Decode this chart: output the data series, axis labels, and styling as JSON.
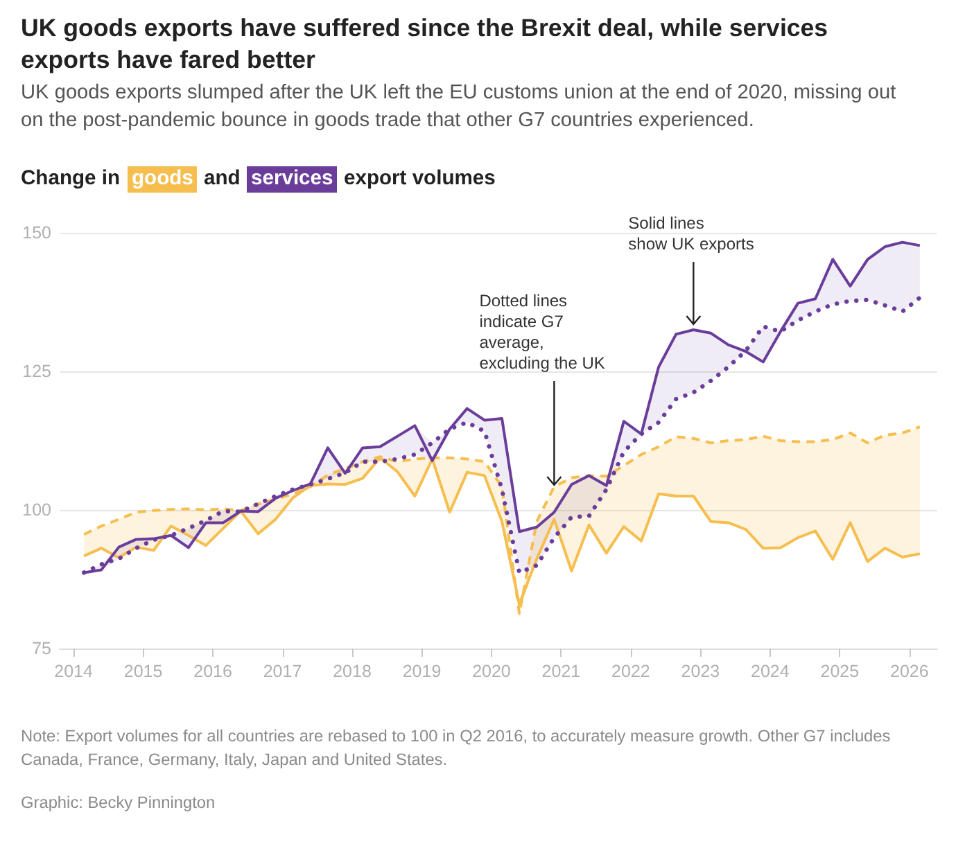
{
  "chart_data": {
    "type": "line",
    "title": "UK goods exports have suffered since the Brexit deal, while services exports have fared better",
    "subtitle": "UK goods exports slumped after the UK left the EU customs union at the end of 2020, missing out on the post-pandemic bounce in goods trade that other G7 countries experienced.",
    "x": [
      2014.15,
      2014.4,
      2014.65,
      2014.9,
      2015.15,
      2015.4,
      2015.65,
      2015.9,
      2016.15,
      2016.4,
      2016.65,
      2016.9,
      2017.15,
      2017.4,
      2017.65,
      2017.9,
      2018.15,
      2018.4,
      2018.65,
      2018.9,
      2019.15,
      2019.4,
      2019.65,
      2019.9,
      2020.15,
      2020.4,
      2020.65,
      2020.9,
      2021.15,
      2021.4,
      2021.65,
      2021.9,
      2022.15,
      2022.4,
      2022.65,
      2022.9,
      2023.15,
      2023.4,
      2023.65,
      2023.9,
      2024.15,
      2024.4,
      2024.65,
      2024.9,
      2025.15,
      2025.4,
      2025.65,
      2025.9,
      2026.15
    ],
    "series": [
      {
        "name": "goods",
        "color": "#f6be4f",
        "line_style": "solid",
        "values": [
          91.7,
          93.1,
          91.4,
          93.3,
          92.7,
          97.1,
          95.4,
          93.6,
          96.7,
          99.8,
          95.7,
          98.3,
          102.2,
          104.4,
          104.7,
          104.6,
          105.7,
          109.4,
          106.9,
          102.5,
          109.2,
          99.6,
          106.8,
          106.2,
          97.9,
          83.0,
          91.2,
          98.3,
          89.0,
          97.3,
          92.2,
          97.0,
          94.4,
          102.9,
          102.5,
          102.5,
          97.9,
          97.7,
          96.5,
          93.1,
          93.2,
          95.0,
          96.2,
          91.1,
          97.7,
          90.7,
          93.1,
          91.5,
          92.1
        ],
        "lower": [
          91.7,
          93.1,
          91.4,
          93.3,
          92.7,
          97.1,
          95.4,
          93.6,
          96.7,
          99.8,
          95.7,
          98.3,
          102.2,
          104.2,
          104.7,
          104.6,
          105.7,
          109.4,
          106.9,
          102.5,
          109.2,
          99.6,
          106.8,
          106.2,
          97.9,
          81.3,
          91.2,
          98.3,
          89.0,
          97.3,
          92.2,
          97.0,
          94.4,
          102.9,
          102.5,
          102.5,
          97.9,
          97.7,
          96.5,
          93.1,
          93.2,
          95.0,
          96.2,
          91.1,
          97.7,
          90.7,
          93.1,
          91.5,
          92.1
        ],
        "upper": [
          95.6,
          97.1,
          98.3,
          99.6,
          99.9,
          100.1,
          100.2,
          100.0,
          100.2,
          99.9,
          101.1,
          101.9,
          102.9,
          104.4,
          106.3,
          107.5,
          108.7,
          109.6,
          108.7,
          109.2,
          109.4,
          109.4,
          109.2,
          108.7,
          104.2,
          83.0,
          97.9,
          104.2,
          105.8,
          106.2,
          106.1,
          108.0,
          110.0,
          111.4,
          113.2,
          112.9,
          112.1,
          112.5,
          112.7,
          113.3,
          112.5,
          112.3,
          112.3,
          112.7,
          113.9,
          112.1,
          113.5,
          113.9,
          115.0
        ]
      },
      {
        "color": "#f6be4f",
        "line_style": "dashed",
        "values": [
          95.6,
          97.1,
          98.3,
          99.6,
          99.9,
          100.1,
          100.2,
          100.0,
          100.2,
          99.9,
          101.1,
          101.9,
          102.9,
          104.2,
          106.3,
          107.5,
          108.7,
          109.6,
          108.7,
          109.2,
          109.4,
          109.4,
          109.2,
          108.7,
          104.2,
          81.3,
          97.9,
          104.2,
          105.8,
          106.2,
          106.1,
          108.0,
          110.0,
          111.4,
          113.2,
          112.9,
          112.1,
          112.5,
          112.7,
          113.3,
          112.5,
          112.3,
          112.3,
          112.7,
          113.9,
          112.1,
          113.5,
          113.9,
          115.0
        ]
      },
      {
        "name": "services",
        "color": "#6b3d9a",
        "line_style": "solid",
        "values": [
          88.7,
          89.2,
          93.3,
          94.7,
          94.8,
          95.4,
          93.2,
          97.7,
          97.7,
          99.8,
          99.7,
          102.1,
          103.5,
          104.7,
          111.2,
          106.6,
          111.2,
          111.4,
          113.3,
          115.2,
          108.9,
          114.6,
          118.3,
          116.2,
          116.5,
          96.1,
          96.9,
          99.6,
          104.6,
          106.2,
          104.4,
          116.0,
          113.7,
          125.8,
          131.7,
          132.5,
          131.9,
          129.8,
          128.6,
          126.7,
          132.2,
          137.3,
          138.1,
          145.2,
          140.4,
          145.2,
          147.5,
          148.3,
          147.7
        ],
        "lower": [
          88.7,
          89.2,
          91.2,
          93.1,
          94.6,
          95.4,
          93.2,
          97.7,
          97.7,
          99.7,
          99.7,
          102.1,
          103.5,
          104.6,
          105.6,
          106.6,
          108.7,
          108.7,
          109.2,
          110.0,
          108.9,
          114.6,
          115.8,
          114.2,
          103.7,
          88.7,
          90.0,
          95.0,
          98.7,
          98.9,
          103.7,
          110.5,
          113.7,
          115.8,
          120.0,
          121.2,
          123.3,
          125.8,
          128.6,
          126.7,
          132.2,
          134.2,
          135.8,
          137.1,
          137.7,
          137.9,
          136.9,
          135.8,
          138.3
        ],
        "upper": [
          88.7,
          90.2,
          93.3,
          94.7,
          94.8,
          95.4,
          96.7,
          98.1,
          99.8,
          99.8,
          101.1,
          102.5,
          103.7,
          104.7,
          111.2,
          106.7,
          111.2,
          111.4,
          113.3,
          115.2,
          112.1,
          114.6,
          118.3,
          116.2,
          116.5,
          96.1,
          96.9,
          99.6,
          104.6,
          106.2,
          104.4,
          116.0,
          113.7,
          125.8,
          131.7,
          132.5,
          131.9,
          129.8,
          128.7,
          133.1,
          132.2,
          137.3,
          138.1,
          145.2,
          140.4,
          145.2,
          147.5,
          148.3,
          147.7
        ]
      },
      {
        "color": "#6b3d9a",
        "line_style": "dotted",
        "values": [
          88.7,
          90.2,
          91.2,
          93.1,
          94.6,
          95.4,
          96.7,
          98.1,
          99.8,
          99.7,
          101.1,
          102.5,
          103.7,
          104.6,
          105.6,
          106.7,
          108.7,
          108.7,
          109.2,
          110.0,
          112.1,
          114.6,
          115.8,
          114.2,
          103.7,
          88.7,
          90.0,
          95.0,
          98.7,
          98.9,
          103.7,
          110.5,
          113.7,
          115.8,
          120.0,
          121.2,
          123.3,
          125.8,
          128.7,
          133.1,
          132.2,
          134.2,
          135.8,
          137.1,
          137.7,
          137.9,
          136.9,
          135.8,
          138.3
        ]
      }
    ],
    "xlim": [
      2013.8,
      2026.4
    ],
    "xticks": [
      2014,
      2015,
      2016,
      2017,
      2018,
      2019,
      2020,
      2021,
      2022,
      2023,
      2024,
      2025,
      2026
    ],
    "ylim": [
      75,
      150
    ],
    "yticks": [
      75,
      100,
      125,
      150
    ],
    "grid": "y",
    "legend": "top left",
    "marker": "none",
    "annotations": [
      "Change in",
      "and",
      "export volumes",
      {
        "text": "Dotted lines indicate G7 average, excluding the UK",
        "x": 2020.9,
        "y": 104.5
      },
      {
        "text": "Solid lines\nshow UK exports",
        "x": 2022.9,
        "y": 133.5
      },
      "Note: Export volumes for all countries are rebased to 100 in Q2 2016, to accurately measure growth. Other G7 includes Canada, France, Germany, Italy, Japan and United States.",
      "Graphic: Becky Pinnington"
    ]
  }
}
